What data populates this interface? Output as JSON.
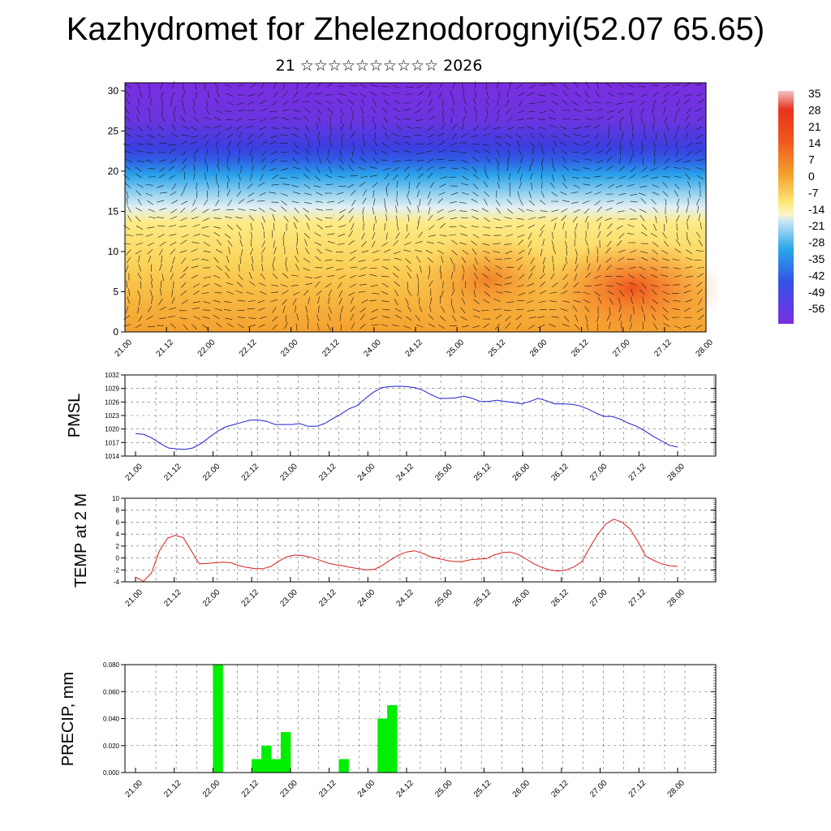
{
  "title": "Kazhydromet for Zheleznodorognyi(52.07 65.65)",
  "subtitle": "21 ☆☆☆☆☆☆☆☆☆☆ 2026",
  "x_ticks": [
    "21.00",
    "21.12",
    "22.00",
    "22.12",
    "23.00",
    "23.12",
    "24.00",
    "24.12",
    "25.00",
    "25.12",
    "26.00",
    "26.12",
    "27.00",
    "27.12",
    "28.00"
  ],
  "chart_data": [
    {
      "id": "cross-section",
      "type": "heatmap",
      "y_ticks": [
        0,
        5,
        10,
        15,
        20,
        25,
        30
      ],
      "ylim": [
        0,
        31
      ],
      "colorbar": {
        "labels": [
          "35",
          "28",
          "21",
          "14",
          "7",
          "0",
          "-7",
          "-14",
          "-21",
          "-28",
          "-35",
          "-42",
          "-49",
          "-56"
        ],
        "colors": {
          "warm_red": "#e8321e",
          "orange": "#f59a2c",
          "yellow": "#fde87a",
          "light_blue": "#c7e5f5",
          "cyan": "#29a6ea",
          "blue": "#3353e6",
          "violet": "#7b2ee0"
        }
      }
    },
    {
      "id": "pmsl",
      "type": "line",
      "ylabel": "PMSL",
      "y_ticks": [
        1014,
        1017,
        1020,
        1023,
        1026,
        1029,
        1032
      ],
      "ylim": [
        1014,
        1032
      ],
      "color": "#1f1fd0",
      "values": [
        1019,
        1018.8,
        1018,
        1016.8,
        1015.8,
        1015.6,
        1015.5,
        1015.8,
        1016.8,
        1018.2,
        1019.5,
        1020.5,
        1021,
        1021.5,
        1022,
        1022,
        1021.7,
        1021,
        1021,
        1021,
        1021.2,
        1020.6,
        1020.6,
        1021.2,
        1022.3,
        1023.3,
        1024.5,
        1025.2,
        1026.8,
        1028.2,
        1029.2,
        1029.4,
        1029.5,
        1029.4,
        1029.2,
        1028.6,
        1027.6,
        1026.8,
        1026.8,
        1026.9,
        1027.3,
        1026.8,
        1026.1,
        1026.1,
        1026.4,
        1026.1,
        1025.9,
        1025.6,
        1026.1,
        1026.8,
        1026.3,
        1025.6,
        1025.6,
        1025.5,
        1025.2,
        1024.5,
        1023.6,
        1022.8,
        1022.8,
        1022.2,
        1021.3,
        1020.6,
        1019.6,
        1018.4,
        1017.4,
        1016.4,
        1016
      ]
    },
    {
      "id": "temp",
      "type": "line",
      "ylabel": "TEMP at 2 M",
      "y_ticks": [
        -4,
        -2,
        0,
        2,
        4,
        6,
        8,
        10
      ],
      "ylim": [
        -4,
        10
      ],
      "color": "#d81e1e",
      "values": [
        -3.2,
        -3.9,
        -2.5,
        1.2,
        3.3,
        3.8,
        3.4,
        1.2,
        -1,
        -0.9,
        -0.8,
        -0.7,
        -0.8,
        -1.3,
        -1.6,
        -1.8,
        -1.8,
        -1.4,
        -0.5,
        0.2,
        0.5,
        0.4,
        0.1,
        -0.3,
        -0.8,
        -1.1,
        -1.3,
        -1.6,
        -1.8,
        -2,
        -1.9,
        -1.2,
        -0.3,
        0.5,
        1,
        1.2,
        0.8,
        0.2,
        -0.1,
        -0.4,
        -0.6,
        -0.6,
        -0.3,
        -0.2,
        -0.1,
        0.5,
        0.9,
        1,
        0.6,
        -0.2,
        -1,
        -1.6,
        -2,
        -2.2,
        -2,
        -1.5,
        -0.6,
        1.8,
        4,
        5.7,
        6.5,
        6,
        4.9,
        2.8,
        0.3,
        -0.4,
        -1,
        -1.3,
        -1.4
      ]
    },
    {
      "id": "precip",
      "type": "bar",
      "ylabel": "PRECIP, mm",
      "y_ticks": [
        "0.000",
        "0.020",
        "0.040",
        "0.060",
        "0.080"
      ],
      "ylim": [
        0,
        0.08
      ],
      "color": "#00ee00",
      "bars": [
        {
          "x": "22.00",
          "value": 0.08
        },
        {
          "x": "22.12",
          "value": 0.01
        },
        {
          "x": "22.15",
          "value": 0.02
        },
        {
          "x": "22.18",
          "value": 0.01
        },
        {
          "x": "22.21",
          "value": 0.03
        },
        {
          "x": "23.15",
          "value": 0.01
        },
        {
          "x": "24.03",
          "value": 0.04
        },
        {
          "x": "24.06",
          "value": 0.05
        }
      ]
    }
  ]
}
